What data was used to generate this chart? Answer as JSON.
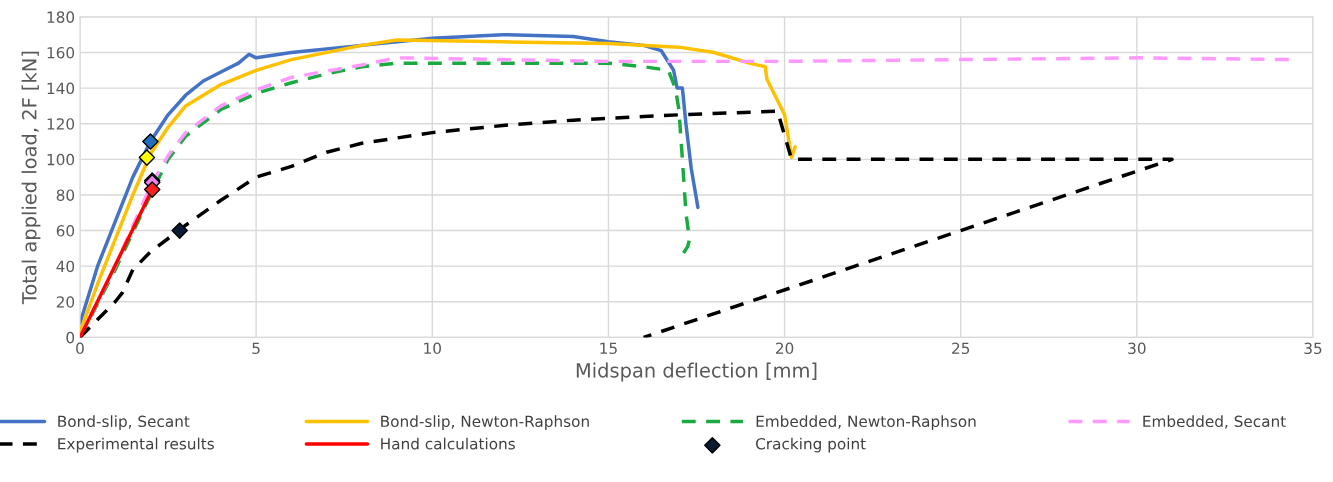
{
  "chart_data": {
    "type": "line",
    "xlabel": "Midspan deflection [mm]",
    "ylabel": "Total applied load, 2F [kN]",
    "xlim": [
      0,
      35
    ],
    "xticks": [
      0,
      5,
      10,
      15,
      20,
      25,
      30,
      35
    ],
    "ylim": [
      0,
      180
    ],
    "yticks": [
      0,
      20,
      40,
      60,
      80,
      100,
      120,
      140,
      160,
      180
    ],
    "grid": true,
    "legend": "bottom",
    "series": [
      {
        "name": "Bond-slip, Secant",
        "color": "#4472c4",
        "line_style": "solid",
        "x": [
          0,
          0.5,
          1,
          1.5,
          2,
          2.5,
          3,
          3.5,
          4,
          4.5,
          4.8,
          5,
          6,
          8,
          10,
          12,
          14,
          15,
          16,
          16.5,
          16.85,
          16.95,
          17.1,
          17.2,
          17.35,
          17.54
        ],
        "values": [
          8,
          40,
          65,
          90,
          110,
          125,
          136,
          144,
          149,
          154,
          159,
          157,
          160,
          164,
          168,
          170,
          169,
          166,
          164,
          161,
          150,
          140,
          140,
          120,
          95,
          73
        ]
      },
      {
        "name": "Bond-slip, Newton-Raphson",
        "color": "#ffc000",
        "line_style": "solid",
        "x": [
          0,
          0.5,
          1,
          1.5,
          2,
          2.5,
          3,
          4,
          5,
          6,
          8,
          9,
          12,
          15,
          17,
          18,
          19,
          19.45,
          19.5,
          20,
          20.2,
          20.3
        ],
        "values": [
          3,
          30,
          55,
          80,
          103,
          118,
          130,
          142,
          150,
          156,
          164,
          167,
          166,
          165,
          163,
          160,
          154,
          152,
          145,
          125,
          101,
          107
        ]
      },
      {
        "name": "Embedded, Newton-Raphson",
        "color": "#1aab40",
        "line_style": "dashed",
        "x": [
          0,
          1,
          2,
          2.5,
          3,
          4,
          5,
          6,
          7,
          8,
          9,
          12,
          15,
          16,
          16.7,
          16.9,
          17,
          17.1,
          17.2,
          17.3,
          17.25,
          17.05
        ],
        "values": [
          0,
          38,
          80,
          100,
          113,
          128,
          137,
          143,
          148,
          152,
          154,
          154,
          154,
          152,
          150,
          140,
          128,
          100,
          70,
          55,
          51,
          45
        ]
      },
      {
        "name": "Embedded, Secant",
        "color": "#ff99ff",
        "line_style": "dashed",
        "x": [
          0,
          1,
          2,
          2.5,
          3,
          4,
          5,
          6,
          8,
          9,
          12,
          15,
          20,
          25,
          30,
          34.4
        ],
        "values": [
          0,
          40,
          85,
          102,
          115,
          130,
          139,
          146,
          153,
          157,
          156,
          155,
          155,
          156,
          157,
          156
        ]
      },
      {
        "name": "Experimental results",
        "color": "#000000",
        "line_style": "dashed",
        "x": [
          0,
          0.5,
          1,
          1.2,
          1.5,
          2,
          2.8,
          3,
          4,
          5,
          6,
          7,
          8,
          10,
          12,
          14,
          16,
          17,
          19.8,
          20.2,
          31,
          16
        ],
        "values": [
          0,
          10,
          20,
          25,
          38,
          48,
          60,
          63,
          77,
          90,
          96,
          104,
          109,
          115,
          119,
          122,
          124,
          125,
          127,
          100,
          100,
          0
        ]
      },
      {
        "name": "Hand calculations",
        "color": "#ff0000",
        "line_style": "solid",
        "x": [
          0,
          2.05
        ],
        "values": [
          0,
          83
        ]
      },
      {
        "name": "Cracking point",
        "type": "scatter",
        "marker": "diamond",
        "color": "#0a1a33",
        "x": [
          2.83,
          2.0,
          1.9,
          2.05,
          2.05,
          2.05
        ],
        "values": [
          60,
          110,
          101,
          88,
          87,
          83
        ],
        "colors": [
          "#0a1a33",
          "#1f6fbf",
          "#ffff00",
          "#2e6b3a",
          "#ee82ee",
          "#ff2020"
        ]
      }
    ]
  }
}
